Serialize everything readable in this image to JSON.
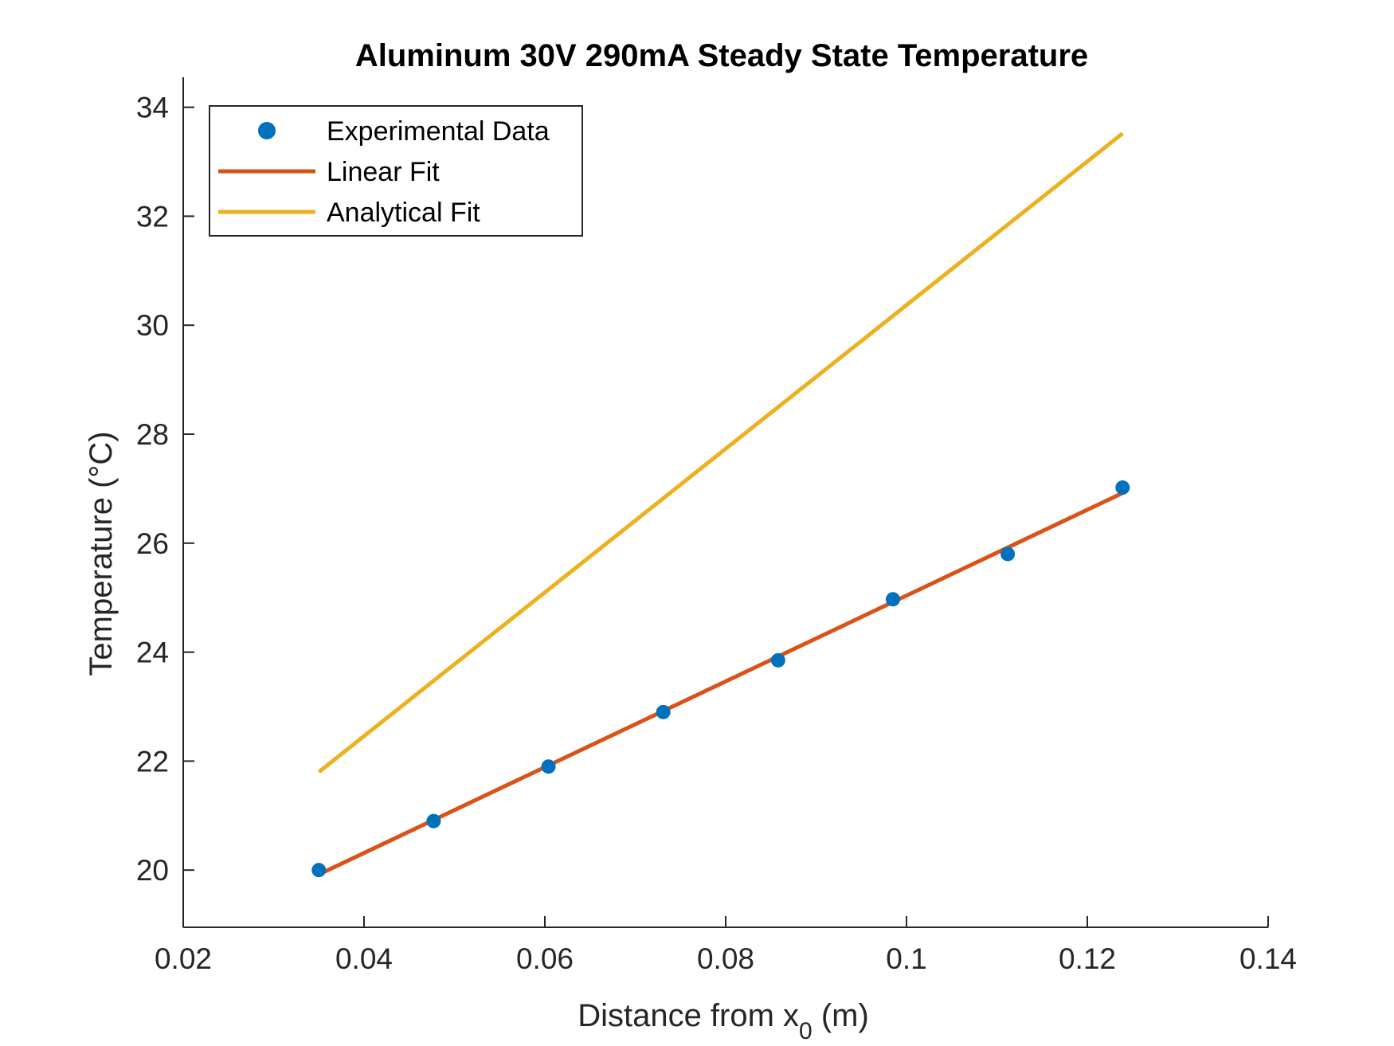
{
  "chart_data": {
    "type": "line",
    "title": "Aluminum 30V 290mA Steady State Temperature",
    "xlabel": {
      "text": "Distance from x",
      "sub": "0",
      "suffix": " (m)"
    },
    "ylabel": "Temperature (°C)",
    "xlim": [
      0.02,
      0.14
    ],
    "ylim": [
      18.95,
      34.55
    ],
    "xticks": [
      0.02,
      0.04,
      0.06,
      0.08,
      0.1,
      0.12,
      0.14
    ],
    "xtick_labels": [
      "0.02",
      "0.04",
      "0.06",
      "0.08",
      "0.1",
      "0.12",
      "0.14"
    ],
    "yticks": [
      20,
      22,
      24,
      26,
      28,
      30,
      32,
      34
    ],
    "ytick_labels": [
      "20",
      "22",
      "24",
      "26",
      "28",
      "30",
      "32",
      "34"
    ],
    "grid": false,
    "legend_position": "top-left",
    "series": [
      {
        "name": "Experimental Data",
        "kind": "markers",
        "color": "#0072BD",
        "x": [
          0.035,
          0.0477,
          0.0604,
          0.0731,
          0.0858,
          0.0985,
          0.1112,
          0.1239
        ],
        "y": [
          20.0,
          20.9,
          21.9,
          22.9,
          23.85,
          24.97,
          25.8,
          27.02
        ]
      },
      {
        "name": "Linear Fit",
        "kind": "line",
        "color": "#D95319",
        "x": [
          0.035,
          0.1239
        ],
        "y": [
          19.92,
          26.92
        ]
      },
      {
        "name": "Analytical Fit",
        "kind": "line",
        "color": "#EDB120",
        "x": [
          0.035,
          0.1239
        ],
        "y": [
          21.8,
          33.52
        ]
      }
    ]
  }
}
